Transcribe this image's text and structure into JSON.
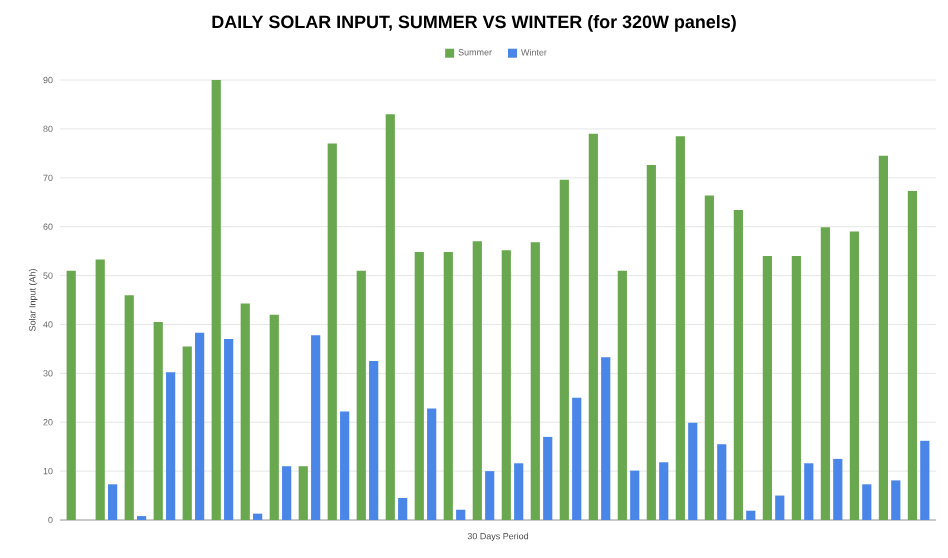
{
  "chart_data": {
    "type": "bar",
    "title": "DAILY SOLAR INPUT, SUMMER VS WINTER (for 320W panels)",
    "xlabel": "30 Days Period",
    "ylabel": "Solar Input (Ah)",
    "categories": [
      null,
      null,
      null,
      null,
      null,
      null,
      null,
      null,
      null,
      null,
      null,
      null,
      null,
      null,
      null,
      null,
      null,
      null,
      null,
      null,
      null,
      null,
      null,
      null,
      null,
      null,
      null,
      null,
      null,
      null
    ],
    "series": [
      {
        "name": "Summer",
        "color": "#6aa84f",
        "values": [
          51,
          53.3,
          46,
          40.5,
          35.5,
          90,
          44.3,
          42,
          11,
          77,
          51,
          83,
          54.8,
          54.8,
          57,
          55.2,
          56.8,
          69.6,
          79,
          51,
          72.6,
          78.5,
          66.4,
          63.4,
          54,
          54,
          59.9,
          59,
          74.5,
          67.3
        ]
      },
      {
        "name": "Winter",
        "color": "#4a86e8",
        "values": [
          null,
          7.3,
          0.8,
          30.2,
          38.3,
          37,
          1.3,
          11,
          37.8,
          22.2,
          32.5,
          4.5,
          22.8,
          2.1,
          10,
          11.6,
          17,
          25,
          33.3,
          10.1,
          11.8,
          19.9,
          15.5,
          1.9,
          5,
          11.6,
          12.5,
          7.3,
          8.1,
          16.2
        ]
      }
    ],
    "ylim": [
      0,
      90
    ],
    "yticks": [
      0,
      10,
      20,
      30,
      40,
      50,
      60,
      70,
      80,
      90
    ],
    "grid": "y",
    "legend": "top",
    "tick_labels": "y"
  }
}
